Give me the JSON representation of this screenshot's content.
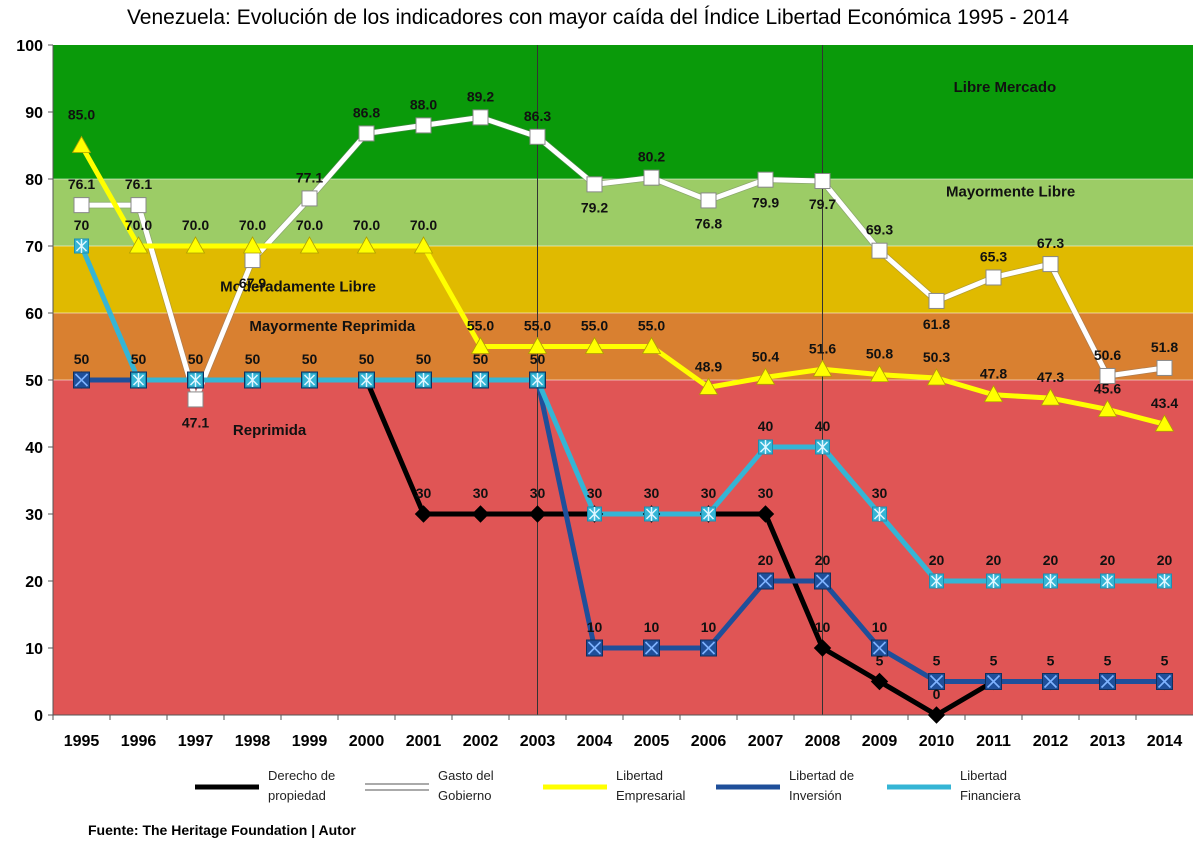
{
  "chart_data": {
    "type": "line",
    "title": "Venezuela: Evolución de los indicadores con mayor caída del Índice Libertad Económica 1995 - 2014",
    "x": [
      1995,
      1996,
      1997,
      1998,
      1999,
      2000,
      2001,
      2002,
      2003,
      2004,
      2005,
      2006,
      2007,
      2008,
      2009,
      2010,
      2011,
      2012,
      2013,
      2014
    ],
    "ylim": [
      0,
      100
    ],
    "yticks": [
      0,
      10,
      20,
      30,
      40,
      50,
      60,
      70,
      80,
      90,
      100
    ],
    "vertical_reference_lines": [
      2003,
      2008
    ],
    "bands": [
      {
        "label": "Libre Mercado",
        "from": 80,
        "to": 100,
        "color": "#0a9a0a"
      },
      {
        "label": "Mayormente Libre",
        "from": 70,
        "to": 80,
        "color": "#9ccc66"
      },
      {
        "label": "Moderadamente Libre",
        "from": 60,
        "to": 70,
        "color": "#e0ba00"
      },
      {
        "label": "Mayormente Reprimida",
        "from": 50,
        "to": 60,
        "color": "#d98030"
      },
      {
        "label": "Reprimida",
        "from": 0,
        "to": 50,
        "color": "#e05555"
      }
    ],
    "series": [
      {
        "name": "Derecho de propiedad",
        "legend_lines": [
          "Derecho de",
          "propiedad"
        ],
        "color": "#000000",
        "marker": "diamond",
        "values": [
          50,
          50,
          50,
          50,
          50,
          50,
          30,
          30,
          30,
          30,
          30,
          30,
          30,
          10,
          5,
          0,
          5,
          5,
          5,
          5
        ],
        "labels": [
          "",
          "",
          "",
          "",
          "",
          "",
          "30",
          "30",
          "30",
          "",
          "",
          "",
          "30",
          "10",
          "5",
          "0",
          "",
          "",
          "",
          ""
        ]
      },
      {
        "name": "Gasto del Gobierno",
        "legend_lines": [
          "Gasto del",
          "Gobierno"
        ],
        "color": "#ffffff",
        "marker": "square",
        "values": [
          76.1,
          76.1,
          47.1,
          67.9,
          77.1,
          86.8,
          88.0,
          89.2,
          86.3,
          79.2,
          80.2,
          76.8,
          79.9,
          79.7,
          69.3,
          61.8,
          65.3,
          67.3,
          50.6,
          51.8
        ],
        "labels": [
          "76.1",
          "76.1",
          "47.1",
          "67.9",
          "77.1",
          "86.8",
          "88.0",
          "89.2",
          "86.3",
          "79.2",
          "80.2",
          "76.8",
          "79.9",
          "79.7",
          "69.3",
          "61.8",
          "65.3",
          "67.3",
          "50.6",
          "51.8"
        ]
      },
      {
        "name": "Libertad Empresarial",
        "legend_lines": [
          "Libertad",
          "Empresarial"
        ],
        "color": "#ffff00",
        "marker": "triangle",
        "values": [
          85.0,
          70.0,
          70.0,
          70.0,
          70.0,
          70.0,
          70.0,
          55.0,
          55.0,
          55.0,
          55.0,
          48.9,
          50.4,
          51.6,
          50.8,
          50.3,
          47.8,
          47.3,
          45.6,
          43.4
        ],
        "labels": [
          "85.0",
          "70.0",
          "70.0",
          "70.0",
          "70.0",
          "70.0",
          "70.0",
          "55.0",
          "55.0",
          "55.0",
          "55.0",
          "48.9",
          "50.4",
          "51.6",
          "50.8",
          "50.3",
          "47.8",
          "47.3",
          "45.6",
          "43.4"
        ]
      },
      {
        "name": "Libertad de Inversión",
        "legend_lines": [
          "Libertad de",
          "Inversión"
        ],
        "color": "#1f4f9a",
        "marker": "xsquare",
        "values": [
          50,
          50,
          50,
          50,
          50,
          50,
          50,
          50,
          50,
          10,
          10,
          10,
          20,
          20,
          10,
          5,
          5,
          5,
          5,
          5
        ],
        "labels": [
          "50",
          "50",
          "50",
          "50",
          "50",
          "50",
          "50",
          "50",
          "50",
          "10",
          "10",
          "10",
          "20",
          "20",
          "10",
          "5",
          "5",
          "5",
          "5",
          "5"
        ]
      },
      {
        "name": "Libertad Financiera",
        "legend_lines": [
          "Libertad",
          "Financiera"
        ],
        "color": "#35b5d5",
        "marker": "star",
        "values": [
          70,
          50,
          50,
          50,
          50,
          50,
          50,
          50,
          50,
          30,
          30,
          30,
          40,
          40,
          30,
          20,
          20,
          20,
          20,
          20
        ],
        "labels": [
          "70",
          "",
          "",
          "",
          "",
          "",
          "",
          "",
          "",
          "30",
          "30",
          "30",
          "40",
          "40",
          "30",
          "20",
          "20",
          "20",
          "20",
          "20"
        ]
      }
    ],
    "source": "Fuente: The Heritage Foundation  |  Autor"
  }
}
